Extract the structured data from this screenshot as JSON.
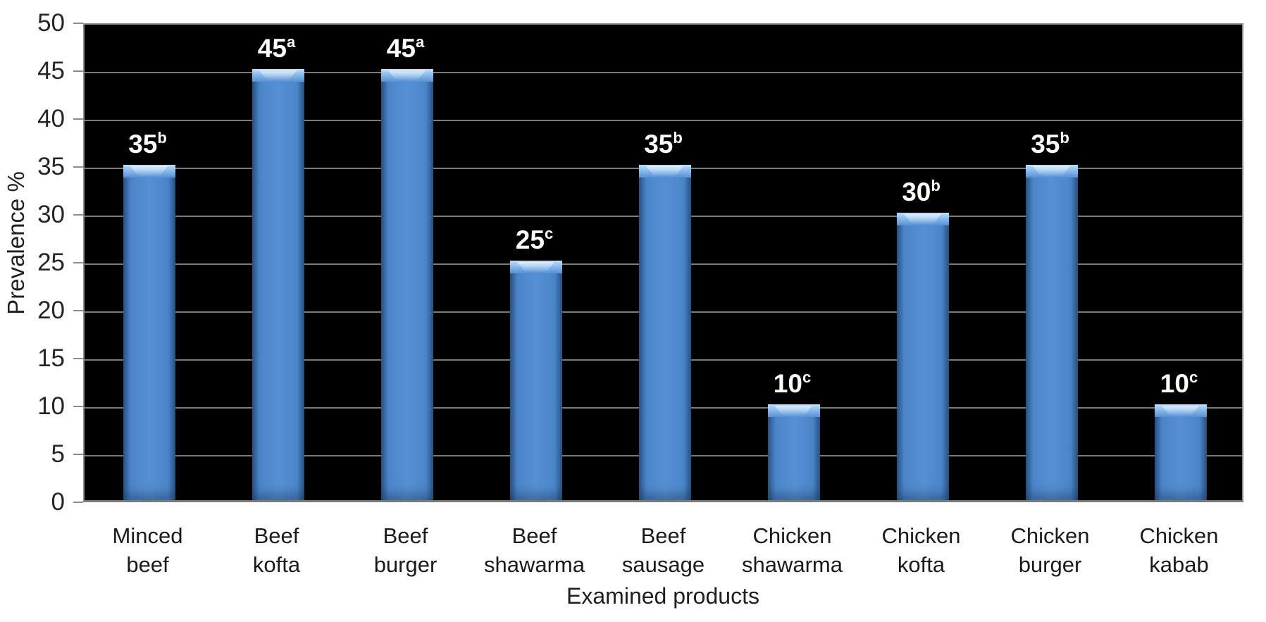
{
  "chart_data": {
    "type": "bar",
    "title": "",
    "xlabel": "Examined products",
    "ylabel": "Prevalence %",
    "ylim": [
      0,
      50
    ],
    "ytick_step": 5,
    "yticks": [
      0,
      5,
      10,
      15,
      20,
      25,
      30,
      35,
      40,
      45,
      50
    ],
    "grid": true,
    "legend": "none",
    "categories": [
      "Minced beef",
      "Beef kofta",
      "Beef burger",
      "Beef shawarma",
      "Beef sausage",
      "Chicken shawarma",
      "Chicken kofta",
      "Chicken burger",
      "Chicken kabab"
    ],
    "category_lines": [
      [
        "Minced",
        "beef"
      ],
      [
        "Beef",
        "kofta"
      ],
      [
        "Beef",
        "burger"
      ],
      [
        "Beef",
        "shawarma"
      ],
      [
        "Beef",
        "sausage"
      ],
      [
        "Chicken",
        "shawarma"
      ],
      [
        "Chicken",
        "kofta"
      ],
      [
        "Chicken",
        "burger"
      ],
      [
        "Chicken",
        "kabab"
      ]
    ],
    "values": [
      35,
      45,
      45,
      25,
      35,
      10,
      30,
      35,
      10
    ],
    "value_superscripts": [
      "b",
      "a",
      "a",
      "c",
      "b",
      "c",
      "b",
      "b",
      "c"
    ],
    "data_labels": [
      "35b",
      "45a",
      "45a",
      "25c",
      "35b",
      "10c",
      "30b",
      "35b",
      "10c"
    ],
    "colors": {
      "plot_background": "#000000",
      "page_background": "#ffffff",
      "bar_fill": "#4b86cb",
      "bar_edge": "#2d5c92",
      "bar_highlight": "#bfe0fa",
      "gridline": "#7a7a7a",
      "axis_border": "#8c8c8c",
      "tick_text": "#262626",
      "data_label_text": "#ffffff"
    }
  }
}
